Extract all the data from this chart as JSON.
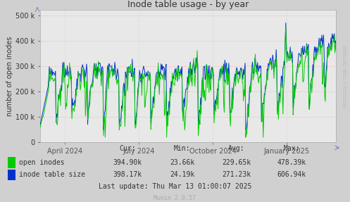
{
  "title": "Inode table usage - by year",
  "ylabel": "number of open inodes",
  "bg_color": "#d0d0d0",
  "plot_bg_color": "#e8e8e8",
  "grid_color_h": "#ff9999",
  "grid_color_v": "#cccccc",
  "ytick_labels": [
    "0",
    "100 k",
    "200 k",
    "300 k",
    "400 k",
    "500 k"
  ],
  "ytick_values": [
    0,
    100000,
    200000,
    300000,
    400000,
    500000
  ],
  "ylim": [
    0,
    520000
  ],
  "xtick_labels": [
    "April 2024",
    "July 2024",
    "October 2024",
    "January 2025"
  ],
  "xtick_positions": [
    0.0833,
    0.3333,
    0.5833,
    0.8333
  ],
  "open_color": "#00cc00",
  "table_color": "#0033cc",
  "watermark": "RRDTOOL / TOBI OETIKER",
  "munin_version": "Munin 2.0.57",
  "last_update": "Last update: Thu Mar 13 01:00:07 2025",
  "entries": [
    {
      "label": "open inodes",
      "color": "#00cc00",
      "cur": "394.90k",
      "min": "23.66k",
      "avg": "229.65k",
      "max": "478.39k"
    },
    {
      "label": "inode table size",
      "color": "#0033cc",
      "cur": "398.17k",
      "min": "24.19k",
      "avg": "271.23k",
      "max": "606.94k"
    }
  ],
  "n_points": 525,
  "seed": 99
}
